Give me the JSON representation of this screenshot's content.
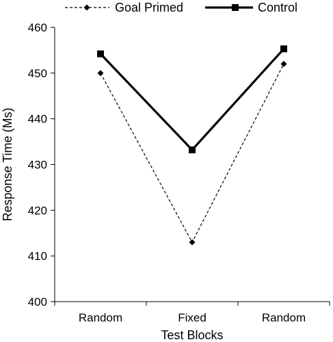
{
  "chart_data": {
    "type": "line",
    "title": "",
    "xlabel": "Test Blocks",
    "ylabel": "Response Time (Ms)",
    "categories": [
      "Random",
      "Fixed",
      "Random"
    ],
    "ylim": [
      400,
      460
    ],
    "yticks": [
      "400",
      "410",
      "420",
      "430",
      "440",
      "450",
      "460"
    ],
    "grid": false,
    "legend_position": "top",
    "series": [
      {
        "name": "Goal Primed",
        "values": [
          450,
          413,
          452
        ],
        "style": "dashed",
        "marker": "diamond",
        "color": "#000000"
      },
      {
        "name": "Control",
        "values": [
          454.2,
          433.2,
          455.3
        ],
        "style": "solid-thick",
        "marker": "square",
        "color": "#000000"
      }
    ]
  }
}
